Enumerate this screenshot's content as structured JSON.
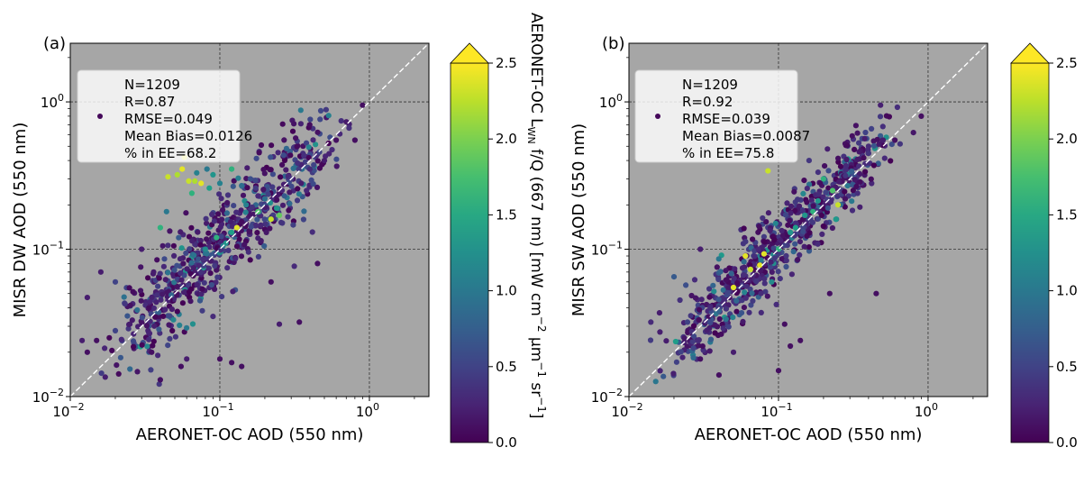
{
  "chart_data": [
    {
      "type": "scatter",
      "panel_label": "(a)",
      "xlabel": "AERONET-OC AOD (550 nm)",
      "ylabel": "MISR DW AOD (550 nm)",
      "x_scale": "log",
      "y_scale": "log",
      "xlim": [
        0.01,
        2.5
      ],
      "ylim": [
        0.01,
        2.5
      ],
      "x_ticks": [
        {
          "value": 0.01,
          "base": "10",
          "exp": "−2"
        },
        {
          "value": 0.1,
          "base": "10",
          "exp": "−1"
        },
        {
          "value": 1,
          "base": "10",
          "exp": "0"
        }
      ],
      "y_ticks": [
        {
          "value": 0.01,
          "base": "10",
          "exp": "−2"
        },
        {
          "value": 0.1,
          "base": "10",
          "exp": "−1"
        },
        {
          "value": 1,
          "base": "10",
          "exp": "0"
        }
      ],
      "grid": true,
      "one_to_one_line": true,
      "stats_box": [
        "N=1209",
        "R=0.87",
        "RMSE=0.049",
        "Mean Bias=0.0126",
        "% in EE=68.2"
      ],
      "colorbar": {
        "label": "AERONET-OC Lₓₙ f/Q (667 nm) [mW cm⁻² μm⁻¹ sr⁻¹]",
        "label_parts": [
          "AERONET-OC L",
          "WN",
          " f/Q (667 nm) [mW cm",
          "−2",
          " μm",
          "−1",
          " sr",
          "−1",
          "]"
        ],
        "range": [
          0,
          2.5
        ],
        "ticks": [
          "0.0",
          "0.5",
          "1.0",
          "1.5",
          "2.0",
          "2.5"
        ],
        "extend": "max",
        "colormap": "viridis"
      },
      "points": [
        [
          0.058,
          0.42,
          2.4
        ],
        [
          0.056,
          0.35,
          2.4
        ],
        [
          0.045,
          0.31,
          2.3
        ],
        [
          0.052,
          0.32,
          2.2
        ],
        [
          0.062,
          0.29,
          2.3
        ],
        [
          0.068,
          0.29,
          2.2
        ],
        [
          0.075,
          0.28,
          2.4
        ],
        [
          0.07,
          0.33,
          1.1
        ],
        [
          0.082,
          0.35,
          1.0
        ],
        [
          0.09,
          0.32,
          1.3
        ],
        [
          0.1,
          0.28,
          1.1
        ],
        [
          0.12,
          0.35,
          1.6
        ],
        [
          0.14,
          0.27,
          0.9
        ],
        [
          0.16,
          0.3,
          0.6
        ],
        [
          0.085,
          0.26,
          1.4
        ],
        [
          0.065,
          0.24,
          1.6
        ],
        [
          0.18,
          0.18,
          1.8
        ],
        [
          0.22,
          0.16,
          2.3
        ],
        [
          0.25,
          0.17,
          1.9
        ],
        [
          0.24,
          0.19,
          1.3
        ],
        [
          0.13,
          0.14,
          2.4
        ],
        [
          0.15,
          0.2,
          1.1
        ],
        [
          0.2,
          0.22,
          0.9
        ],
        [
          0.095,
          0.12,
          1.6
        ],
        [
          0.11,
          0.11,
          1.3
        ],
        [
          0.12,
          0.13,
          1.4
        ],
        [
          0.08,
          0.1,
          1.2
        ],
        [
          0.04,
          0.14,
          1.6
        ],
        [
          0.044,
          0.18,
          1.0
        ],
        [
          0.3,
          0.3,
          0.4
        ],
        [
          0.35,
          0.28,
          0.2
        ],
        [
          0.4,
          0.35,
          0.3
        ],
        [
          0.5,
          0.4,
          0.2
        ],
        [
          0.6,
          0.55,
          0.1
        ],
        [
          0.9,
          0.95,
          0.1
        ],
        [
          0.8,
          0.55,
          0.1
        ],
        [
          0.45,
          0.08,
          0.1
        ],
        [
          0.012,
          0.024,
          0.2
        ],
        [
          0.013,
          0.02,
          0.1
        ],
        [
          0.015,
          0.024,
          0.1
        ],
        [
          0.02,
          0.028,
          0.5
        ],
        [
          0.025,
          0.031,
          0.2
        ],
        [
          0.035,
          0.02,
          0.1
        ],
        [
          0.04,
          0.013,
          0.1
        ],
        [
          0.055,
          0.016,
          0.1
        ],
        [
          0.06,
          0.018,
          0.2
        ],
        [
          0.1,
          0.018,
          0.1
        ],
        [
          0.12,
          0.017,
          0.1
        ],
        [
          0.14,
          0.016,
          0.1
        ],
        [
          0.016,
          0.07,
          0.2
        ],
        [
          0.02,
          0.06,
          0.5
        ],
        [
          0.013,
          0.047,
          0.2
        ],
        [
          0.25,
          0.031,
          0.2
        ],
        [
          0.34,
          0.032,
          0.1
        ],
        [
          0.22,
          0.06,
          0.1
        ],
        [
          0.03,
          0.1,
          0.2
        ],
        [
          0.09,
          0.035,
          0.3
        ]
      ]
    },
    {
      "type": "scatter",
      "panel_label": "(b)",
      "xlabel": "AERONET-OC AOD (550 nm)",
      "ylabel": "MISR SW AOD (550 nm)",
      "x_scale": "log",
      "y_scale": "log",
      "xlim": [
        0.01,
        2.5
      ],
      "ylim": [
        0.01,
        2.5
      ],
      "x_ticks": [
        {
          "value": 0.01,
          "base": "10",
          "exp": "−2"
        },
        {
          "value": 0.1,
          "base": "10",
          "exp": "−1"
        },
        {
          "value": 1,
          "base": "10",
          "exp": "0"
        }
      ],
      "y_ticks": [
        {
          "value": 0.01,
          "base": "10",
          "exp": "−2"
        },
        {
          "value": 0.1,
          "base": "10",
          "exp": "−1"
        },
        {
          "value": 1,
          "base": "10",
          "exp": "0"
        }
      ],
      "grid": true,
      "one_to_one_line": true,
      "stats_box": [
        "N=1209",
        "R=0.92",
        "RMSE=0.039",
        "Mean Bias=0.0087",
        "% in EE=75.8"
      ],
      "colorbar": {
        "label": "AERONET-OC Lₓₙ f/Q (667 nm) [mW cm⁻² μm⁻¹ sr⁻¹]",
        "label_parts": [
          "AERONET-OC L",
          "WN",
          " f/Q (667 nm) [mW cm",
          "−2",
          " μm",
          "−1",
          " sr",
          "−1",
          "]"
        ],
        "range": [
          0,
          2.5
        ],
        "ticks": [
          "0.0",
          "0.5",
          "1.0",
          "1.5",
          "2.0",
          "2.5"
        ],
        "extend": "max",
        "colormap": "viridis"
      },
      "points": [
        [
          0.085,
          0.34,
          2.3
        ],
        [
          0.23,
          0.25,
          1.8
        ],
        [
          0.25,
          0.2,
          2.3
        ],
        [
          0.2,
          0.3,
          1.6
        ],
        [
          0.29,
          0.27,
          1.0
        ],
        [
          0.15,
          0.17,
          1.3
        ],
        [
          0.06,
          0.09,
          2.4
        ],
        [
          0.065,
          0.073,
          2.3
        ],
        [
          0.075,
          0.078,
          2.4
        ],
        [
          0.08,
          0.093,
          2.4
        ],
        [
          0.05,
          0.055,
          2.4
        ],
        [
          0.1,
          0.1,
          1.6
        ],
        [
          0.12,
          0.13,
          1.3
        ],
        [
          0.13,
          0.14,
          1.4
        ],
        [
          0.17,
          0.18,
          1.6
        ],
        [
          0.09,
          0.06,
          1.2
        ],
        [
          0.4,
          0.5,
          0.3
        ],
        [
          0.5,
          0.55,
          0.2
        ],
        [
          0.6,
          0.55,
          0.1
        ],
        [
          0.9,
          0.8,
          0.1
        ],
        [
          0.38,
          0.38,
          0.3
        ],
        [
          0.45,
          0.05,
          0.1
        ],
        [
          0.04,
          0.038,
          0.8
        ],
        [
          0.02,
          0.065,
          0.7
        ],
        [
          0.024,
          0.057,
          0.6
        ],
        [
          0.014,
          0.032,
          0.3
        ],
        [
          0.016,
          0.037,
          0.2
        ],
        [
          0.03,
          0.018,
          0.1
        ],
        [
          0.04,
          0.014,
          0.1
        ],
        [
          0.1,
          0.015,
          0.1
        ],
        [
          0.12,
          0.022,
          0.1
        ],
        [
          0.14,
          0.024,
          0.1
        ],
        [
          0.11,
          0.031,
          0.1
        ],
        [
          0.05,
          0.02,
          0.2
        ],
        [
          0.22,
          0.05,
          0.1
        ],
        [
          0.03,
          0.1,
          0.2
        ],
        [
          0.16,
          0.4,
          0.4
        ],
        [
          0.035,
          0.04,
          0.3
        ]
      ]
    }
  ]
}
